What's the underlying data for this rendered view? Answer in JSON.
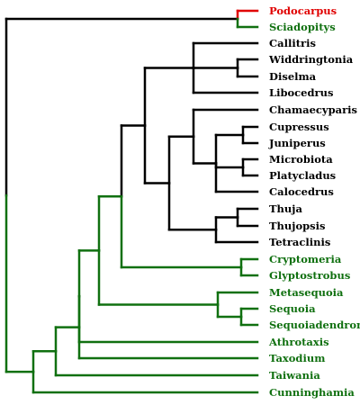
{
  "colors": {
    "outgroup": "#e00000",
    "green": "#107010",
    "black": "#000000"
  },
  "taxa": [
    {
      "id": "podocarpus",
      "label": "Podocarpus",
      "color": "outgroup"
    },
    {
      "id": "sciadopitys",
      "label": "Sciadopitys",
      "color": "green"
    },
    {
      "id": "callitris",
      "label": "Callitris",
      "color": "black"
    },
    {
      "id": "widdringtonia",
      "label": "Widdringtonia",
      "color": "black"
    },
    {
      "id": "diselma",
      "label": "Diselma",
      "color": "black"
    },
    {
      "id": "libocedrus",
      "label": "Libocedrus",
      "color": "black"
    },
    {
      "id": "chamaecyparis",
      "label": "Chamaecyparis",
      "color": "black"
    },
    {
      "id": "cupressus",
      "label": "Cupressus",
      "color": "black"
    },
    {
      "id": "juniperus",
      "label": "Juniperus",
      "color": "black"
    },
    {
      "id": "microbiota",
      "label": "Microbiota",
      "color": "black"
    },
    {
      "id": "platycladus",
      "label": "Platycladus",
      "color": "black"
    },
    {
      "id": "calocedrus",
      "label": "Calocedrus",
      "color": "black"
    },
    {
      "id": "thuja",
      "label": "Thuja",
      "color": "black"
    },
    {
      "id": "thujopsis",
      "label": "Thujopsis",
      "color": "black"
    },
    {
      "id": "tetraclinis",
      "label": "Tetraclinis",
      "color": "black"
    },
    {
      "id": "cryptomeria",
      "label": "Cryptomeria",
      "color": "green"
    },
    {
      "id": "glyptostrobus",
      "label": "Glyptostrobus",
      "color": "green"
    },
    {
      "id": "metasequoia",
      "label": "Metasequoia",
      "color": "green"
    },
    {
      "id": "sequoia",
      "label": "Sequoia",
      "color": "green"
    },
    {
      "id": "sequoiadendron",
      "label": "Sequoiadendron",
      "color": "green"
    },
    {
      "id": "athrotaxis",
      "label": "Athrotaxis",
      "color": "green"
    },
    {
      "id": "taxodium",
      "label": "Taxodium",
      "color": "green"
    },
    {
      "id": "taiwania",
      "label": "Taiwania",
      "color": "green"
    },
    {
      "id": "cunninghamia",
      "label": "Cunninghamia",
      "color": "green"
    }
  ]
}
